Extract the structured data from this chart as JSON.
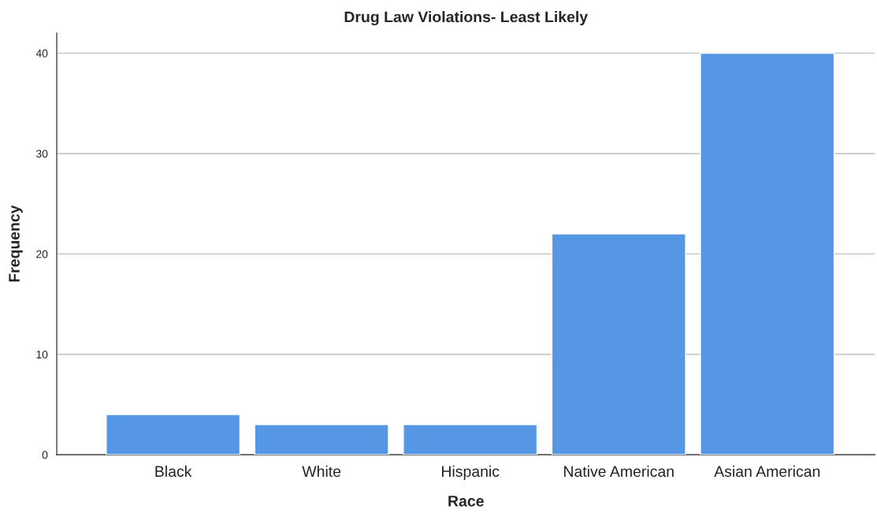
{
  "chart_data": {
    "type": "bar",
    "title": "Drug Law Violations- Least Likely",
    "xlabel": "Race",
    "ylabel": "Frequency",
    "categories": [
      "Black",
      "White",
      "Hispanic",
      "Native American",
      "Asian American"
    ],
    "values": [
      4,
      3,
      3,
      22,
      40
    ],
    "color": "#5596e5",
    "ylim": [
      0,
      42
    ],
    "yticks": [
      0,
      10,
      20,
      30,
      40
    ],
    "grid": "y",
    "legend": false
  }
}
